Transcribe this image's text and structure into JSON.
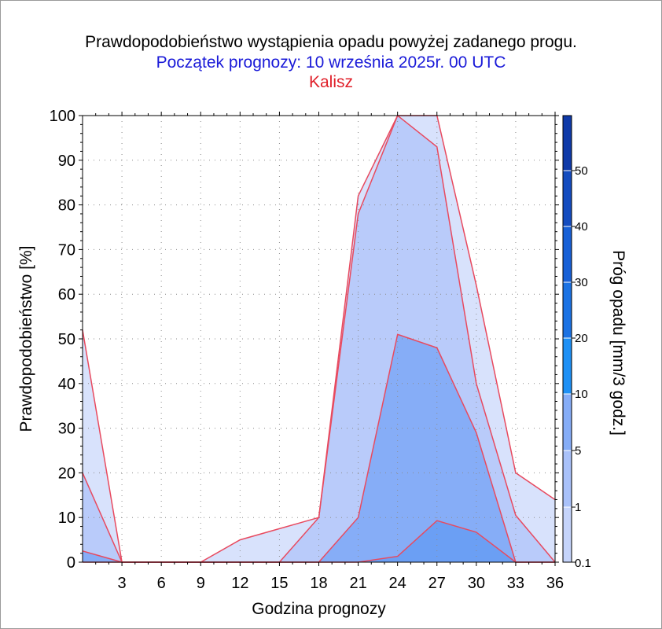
{
  "titles": {
    "line1": "Prawdopodobieństwo wystąpienia opadu powyżej zadanego progu.",
    "line2": "Początek prognozy: 10 września 2025r. 00 UTC",
    "line3": "Kalisz"
  },
  "colors": {
    "title1": "#000000",
    "title2": "#1a1ad8",
    "title3": "#e0202a",
    "outline": "#e84a5f"
  },
  "chart_data": {
    "type": "area",
    "xlabel": "Godzina prognozy",
    "ylabel": "Prawdopodobieństwo [%]",
    "xlim": [
      0,
      36
    ],
    "ylim": [
      0,
      100
    ],
    "x_ticks": [
      3,
      6,
      9,
      12,
      15,
      18,
      21,
      24,
      27,
      30,
      33,
      36
    ],
    "y_ticks": [
      0,
      10,
      20,
      30,
      40,
      50,
      60,
      70,
      80,
      90,
      100
    ],
    "grid": true,
    "x": [
      0,
      3,
      6,
      9,
      12,
      15,
      18,
      21,
      24,
      27,
      30,
      33,
      36
    ],
    "series": [
      {
        "threshold": 0.1,
        "color": "#d8e2fc",
        "values": [
          52,
          0,
          0,
          0,
          5,
          7.5,
          10,
          82,
          100,
          100,
          62,
          20,
          14
        ]
      },
      {
        "threshold": 1,
        "color": "#b9cbfa",
        "values": [
          20,
          0,
          0,
          0,
          0,
          0,
          10,
          78,
          100,
          93,
          40,
          10.5,
          0
        ]
      },
      {
        "threshold": 5,
        "color": "#86adf7",
        "values": [
          2.5,
          0,
          0,
          0,
          0,
          0,
          0,
          10,
          51,
          48,
          29,
          0,
          0
        ]
      },
      {
        "threshold": 10,
        "color": "#6b9ff4",
        "values": [
          0,
          0,
          0,
          0,
          0,
          0,
          0,
          0,
          1.3,
          9.3,
          6.7,
          0,
          0
        ]
      }
    ],
    "colorbar": {
      "label": "Próg opadu [mm/3 godz.]",
      "ticks": [
        "0.1",
        "1",
        "5",
        "10",
        "20",
        "30",
        "40",
        "50"
      ],
      "colors": [
        "#e6ecfd",
        "#c5d4fb",
        "#a9c1f9",
        "#86adf7",
        "#1e90f5",
        "#1b72e3",
        "#1860d6",
        "#144cbf",
        "#0f3aa8"
      ]
    }
  }
}
